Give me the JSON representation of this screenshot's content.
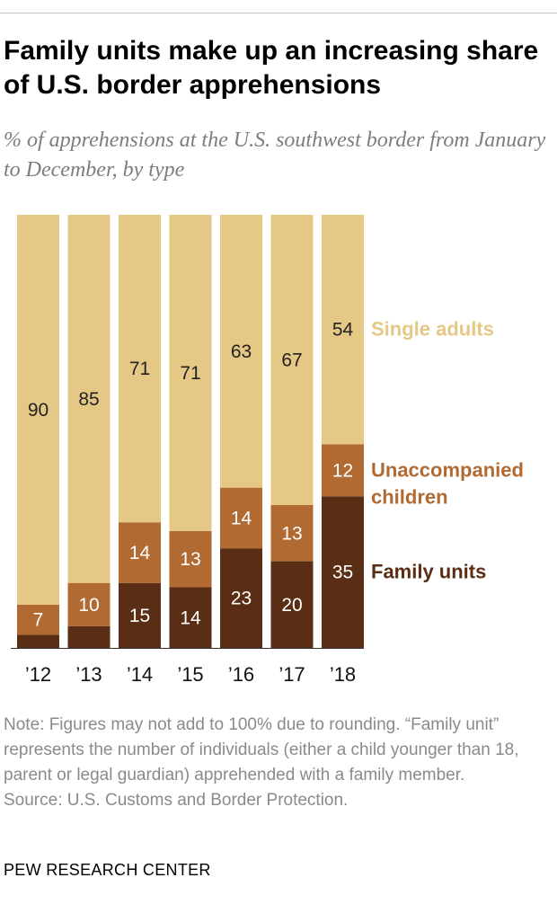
{
  "title": "Family units make up an increasing share of U.S. border apprehensions",
  "subtitle": "% of apprehensions at the U.S. southwest border from January to December, by type",
  "note": "Note: Figures may not add to 100% due to rounding. “Family unit” represents the number of individuals (either a child younger than 18, parent or legal guardian) apprehended with a family member.",
  "source": "Source: U.S. Customs and Border Protection.",
  "brand": "PEW RESEARCH CENTER",
  "colors": {
    "single_adults": "#E6C886",
    "unaccompanied_children": "#B06A32",
    "family_units": "#5A2E14",
    "light_label_text": "#ffffff",
    "dark_label_text": "#222222"
  },
  "chart_data": {
    "type": "bar",
    "stacked": true,
    "categories": [
      "’12",
      "’13",
      "’14",
      "’15",
      "’16",
      "’17",
      "’18"
    ],
    "series": [
      {
        "name": "Family units",
        "key": "family_units",
        "values": [
          3,
          5,
          15,
          14,
          23,
          20,
          35
        ],
        "labels": [
          "",
          "",
          "15",
          "14",
          "23",
          "20",
          "35"
        ]
      },
      {
        "name": "Unaccompanied children",
        "key": "unaccompanied_children",
        "values": [
          7,
          10,
          14,
          13,
          14,
          13,
          12
        ],
        "labels": [
          "7",
          "10",
          "14",
          "13",
          "14",
          "13",
          "12"
        ]
      },
      {
        "name": "Single adults",
        "key": "single_adults",
        "values": [
          90,
          85,
          71,
          71,
          63,
          67,
          54
        ],
        "labels": [
          "90",
          "85",
          "71",
          "71",
          "63",
          "67",
          "54"
        ]
      }
    ],
    "legend": [
      {
        "key": "single_adults",
        "lines": [
          "Single adults"
        ]
      },
      {
        "key": "unaccompanied_children",
        "lines": [
          "Unaccompanied",
          "children"
        ]
      },
      {
        "key": "family_units",
        "lines": [
          "Family units"
        ]
      }
    ],
    "legend_placement": "right, beside last bar",
    "ylim": [
      0,
      100
    ],
    "grid": false
  }
}
